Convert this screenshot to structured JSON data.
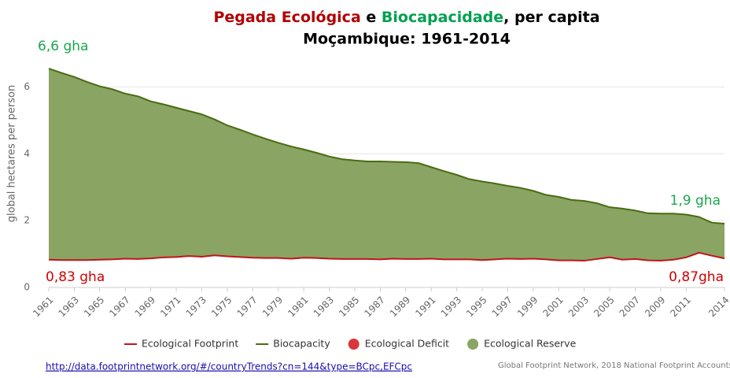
{
  "chart_data": {
    "type": "area",
    "title_line1": [
      {
        "text": "Pegada Ecológica",
        "color": "#b00000"
      },
      {
        "text": " e ",
        "color": "#000000"
      },
      {
        "text": "Biocapacidade",
        "color": "#00a050"
      },
      {
        "text": ", per capita",
        "color": "#000000"
      }
    ],
    "title_line2": "Moçambique: 1961-2014",
    "y_label": "global hectares per person",
    "x": [
      1961,
      1962,
      1963,
      1964,
      1965,
      1966,
      1967,
      1968,
      1969,
      1970,
      1971,
      1972,
      1973,
      1974,
      1975,
      1976,
      1977,
      1978,
      1979,
      1980,
      1981,
      1982,
      1983,
      1984,
      1985,
      1986,
      1987,
      1988,
      1989,
      1990,
      1991,
      1992,
      1993,
      1994,
      1995,
      1996,
      1997,
      1998,
      1999,
      2000,
      2001,
      2002,
      2003,
      2004,
      2005,
      2006,
      2007,
      2008,
      2009,
      2010,
      2011,
      2012,
      2013,
      2014
    ],
    "series": [
      {
        "name": "Ecological Footprint",
        "color": "#c0141c",
        "values": [
          0.83,
          0.82,
          0.82,
          0.82,
          0.83,
          0.84,
          0.86,
          0.85,
          0.87,
          0.9,
          0.91,
          0.94,
          0.92,
          0.96,
          0.93,
          0.91,
          0.89,
          0.88,
          0.88,
          0.86,
          0.89,
          0.88,
          0.86,
          0.85,
          0.85,
          0.85,
          0.84,
          0.86,
          0.85,
          0.85,
          0.86,
          0.84,
          0.84,
          0.84,
          0.82,
          0.84,
          0.86,
          0.85,
          0.86,
          0.84,
          0.81,
          0.81,
          0.8,
          0.85,
          0.9,
          0.83,
          0.85,
          0.81,
          0.8,
          0.83,
          0.9,
          1.04,
          0.95,
          0.87
        ]
      },
      {
        "name": "Biocapacity",
        "color": "#4a6b12",
        "values": [
          6.55,
          6.42,
          6.3,
          6.15,
          6.02,
          5.93,
          5.8,
          5.72,
          5.57,
          5.48,
          5.38,
          5.28,
          5.18,
          5.03,
          4.85,
          4.72,
          4.58,
          4.45,
          4.33,
          4.22,
          4.13,
          4.03,
          3.92,
          3.84,
          3.8,
          3.77,
          3.77,
          3.76,
          3.75,
          3.72,
          3.6,
          3.48,
          3.37,
          3.24,
          3.17,
          3.11,
          3.04,
          2.98,
          2.89,
          2.77,
          2.71,
          2.62,
          2.59,
          2.52,
          2.4,
          2.36,
          2.3,
          2.22,
          2.21,
          2.21,
          2.18,
          2.11,
          1.94,
          1.91
        ]
      }
    ],
    "legend_extra": [
      {
        "name": "Ecological Deficit",
        "color": "#d9383a"
      },
      {
        "name": "Ecological Reserve",
        "color": "#8aa463"
      }
    ],
    "xlim": [
      1961,
      2014
    ],
    "xticks": [
      1961,
      1963,
      1965,
      1967,
      1969,
      1971,
      1973,
      1975,
      1977,
      1979,
      1981,
      1983,
      1985,
      1987,
      1989,
      1991,
      1993,
      1995,
      1997,
      1999,
      2001,
      2003,
      2005,
      2007,
      2009,
      2011,
      2014
    ],
    "ylim": [
      0,
      7
    ],
    "yticks": [
      0,
      2,
      4,
      6
    ],
    "grid": true,
    "annotations": [
      {
        "text": "6,6 gha",
        "color": "#18a84c"
      },
      {
        "text": "1,9 gha",
        "color": "#18a84c"
      },
      {
        "text": "0,83 gha",
        "color": "#d00000"
      },
      {
        "text": "0,87gha",
        "color": "#d00000"
      }
    ],
    "link": "http://data.footprintnetwork.org/#/countryTrends?cn=144&type=BCpc,EFCpc",
    "source": "Global Footprint Network, 2018 National Footprint Accounts"
  }
}
